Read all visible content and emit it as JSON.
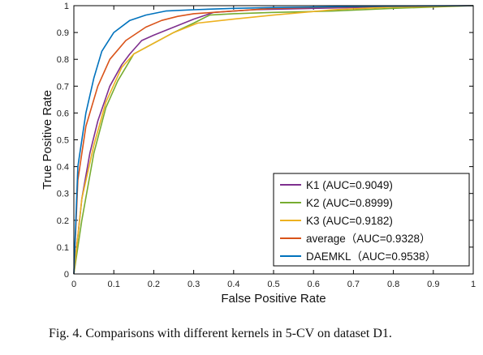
{
  "caption": "Fig. 4.   Comparisons with different kernels in 5-CV on dataset D1.",
  "chart_data": {
    "type": "line",
    "title": "",
    "xlabel": "False Positive Rate",
    "ylabel": "True Positive Rate",
    "xlim": [
      0,
      1
    ],
    "ylim": [
      0,
      1
    ],
    "xticks": [
      0,
      0.1,
      0.2,
      0.3,
      0.4,
      0.5,
      0.6,
      0.7,
      0.8,
      0.9,
      1
    ],
    "yticks": [
      0,
      0.1,
      0.2,
      0.3,
      0.4,
      0.5,
      0.6,
      0.7,
      0.8,
      0.9,
      1
    ],
    "xtick_labels": [
      "0",
      "0.1",
      "0.2",
      "0.3",
      "0.4",
      "0.5",
      "0.6",
      "0.7",
      "0.8",
      "0.9",
      "1"
    ],
    "ytick_labels": [
      "0",
      "0.1",
      "0.2",
      "0.3",
      "0.4",
      "0.5",
      "0.6",
      "0.7",
      "0.8",
      "0.9",
      "1"
    ],
    "grid": false,
    "legend_position": "bottom-right",
    "series": [
      {
        "name": "K1 (AUC=0.9049)",
        "color": "#7e2f8e",
        "x": [
          0,
          0.02,
          0.04,
          0.06,
          0.09,
          0.12,
          0.14,
          0.17,
          0.2,
          0.25,
          0.3,
          0.35,
          0.45,
          0.6,
          0.8,
          1
        ],
        "y": [
          0,
          0.28,
          0.45,
          0.57,
          0.7,
          0.78,
          0.82,
          0.87,
          0.89,
          0.92,
          0.95,
          0.975,
          0.985,
          0.99,
          0.996,
          1
        ]
      },
      {
        "name": "K2 (AUC=0.8999)",
        "color": "#77ac30",
        "x": [
          0,
          0.02,
          0.05,
          0.08,
          0.11,
          0.15,
          0.2,
          0.25,
          0.3,
          0.34,
          0.4,
          0.5,
          0.65,
          0.8,
          1
        ],
        "y": [
          0,
          0.2,
          0.45,
          0.62,
          0.72,
          0.82,
          0.86,
          0.9,
          0.935,
          0.965,
          0.97,
          0.975,
          0.98,
          0.99,
          1
        ]
      },
      {
        "name": "K3 (AUC=0.9182)",
        "color": "#edb120",
        "x": [
          0,
          0.02,
          0.05,
          0.08,
          0.12,
          0.15,
          0.2,
          0.25,
          0.31,
          0.4,
          0.5,
          0.65,
          0.8,
          1
        ],
        "y": [
          0,
          0.28,
          0.48,
          0.64,
          0.77,
          0.82,
          0.86,
          0.9,
          0.935,
          0.95,
          0.965,
          0.985,
          0.995,
          1
        ]
      },
      {
        "name": "average（AUC=0.9328）",
        "color": "#d95319",
        "x": [
          0,
          0.01,
          0.03,
          0.06,
          0.09,
          0.13,
          0.18,
          0.22,
          0.26,
          0.3,
          0.4,
          0.5,
          0.65,
          0.8,
          1
        ],
        "y": [
          0,
          0.35,
          0.55,
          0.7,
          0.8,
          0.87,
          0.92,
          0.945,
          0.96,
          0.97,
          0.98,
          0.99,
          0.995,
          0.998,
          1
        ]
      },
      {
        "name": "DAEMKL（AUC=0.9538）",
        "color": "#0072bd",
        "x": [
          0,
          0.01,
          0.03,
          0.05,
          0.07,
          0.1,
          0.14,
          0.18,
          0.23,
          0.3,
          0.4,
          0.5,
          0.6,
          0.7,
          0.85,
          1
        ],
        "y": [
          0,
          0.4,
          0.6,
          0.73,
          0.83,
          0.9,
          0.945,
          0.965,
          0.98,
          0.985,
          0.99,
          0.993,
          0.995,
          0.997,
          0.999,
          1
        ]
      }
    ]
  }
}
